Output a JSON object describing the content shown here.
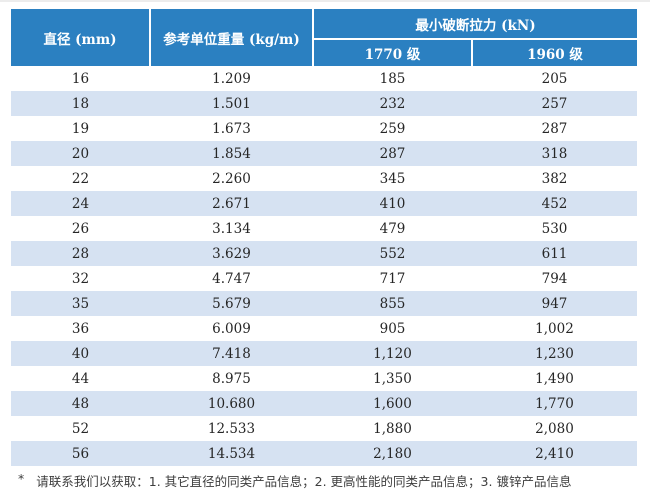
{
  "table": {
    "header": {
      "diameter": "直径 (mm)",
      "unit_weight": "参考单位重量 (kg/m)",
      "breaking_force": "最小破断拉力 (kN)",
      "grade_1770": "1770 级",
      "grade_1960": "1960 级"
    },
    "rows": [
      {
        "diameter": "16",
        "unit_weight": "1.209",
        "grade_1770": "185",
        "grade_1960": "205"
      },
      {
        "diameter": "18",
        "unit_weight": "1.501",
        "grade_1770": "232",
        "grade_1960": "257"
      },
      {
        "diameter": "19",
        "unit_weight": "1.673",
        "grade_1770": "259",
        "grade_1960": "287"
      },
      {
        "diameter": "20",
        "unit_weight": "1.854",
        "grade_1770": "287",
        "grade_1960": "318"
      },
      {
        "diameter": "22",
        "unit_weight": "2.260",
        "grade_1770": "345",
        "grade_1960": "382"
      },
      {
        "diameter": "24",
        "unit_weight": "2.671",
        "grade_1770": "410",
        "grade_1960": "452"
      },
      {
        "diameter": "26",
        "unit_weight": "3.134",
        "grade_1770": "479",
        "grade_1960": "530"
      },
      {
        "diameter": "28",
        "unit_weight": "3.629",
        "grade_1770": "552",
        "grade_1960": "611"
      },
      {
        "diameter": "32",
        "unit_weight": "4.747",
        "grade_1770": "717",
        "grade_1960": "794"
      },
      {
        "diameter": "35",
        "unit_weight": "5.679",
        "grade_1770": "855",
        "grade_1960": "947"
      },
      {
        "diameter": "36",
        "unit_weight": "6.009",
        "grade_1770": "905",
        "grade_1960": "1,002"
      },
      {
        "diameter": "40",
        "unit_weight": "7.418",
        "grade_1770": "1,120",
        "grade_1960": "1,230"
      },
      {
        "diameter": "44",
        "unit_weight": "8.975",
        "grade_1770": "1,350",
        "grade_1960": "1,490"
      },
      {
        "diameter": "48",
        "unit_weight": "10.680",
        "grade_1770": "1,600",
        "grade_1960": "1,770"
      },
      {
        "diameter": "52",
        "unit_weight": "12.533",
        "grade_1770": "1,880",
        "grade_1960": "2,080"
      },
      {
        "diameter": "56",
        "unit_weight": "14.534",
        "grade_1770": "2,180",
        "grade_1960": "2,410"
      }
    ]
  },
  "footnote": {
    "marker": "*",
    "text": "请联系我们以获取：1. 其它直径的同类产品信息；2. 更高性能的同类产品信息；3. 镀锌产品信息"
  },
  "colors": {
    "header_bg": "#2b80c1",
    "header_text": "#ffffff",
    "row_alt_bg": "#d6e2f2",
    "body_text": "#262626",
    "footnote_text": "#3d3d3d"
  }
}
